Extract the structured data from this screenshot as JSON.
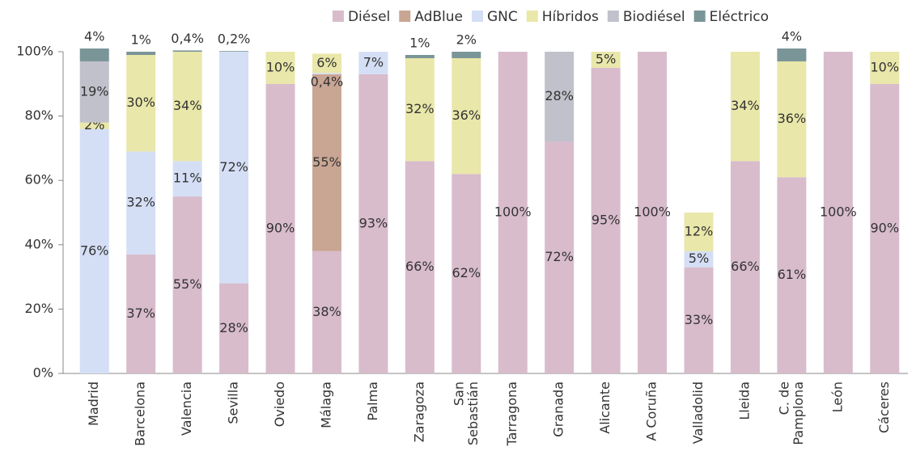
{
  "chart_data": {
    "type": "stacked-bar",
    "categories": [
      "Madrid",
      "Barcelona",
      "Valencia",
      "Sevilla",
      "Oviedo",
      "Málaga",
      "Palma",
      "Zaragoza",
      "San\nSebastián",
      "Tarragona",
      "Granada",
      "Alicante",
      "A Coruña",
      "Valladolid",
      "Lleida",
      "C. de\nPamplona",
      "León",
      "Cáceres"
    ],
    "series": [
      {
        "name": "Diésel",
        "color": "#d8bccc",
        "values": [
          null,
          37,
          55,
          28,
          90,
          38,
          93,
          66,
          62,
          100,
          72,
          95,
          100,
          33,
          66,
          61,
          100,
          90
        ],
        "value_labels": [
          null,
          "37%",
          "55%",
          "28%",
          "90%",
          "38%",
          "93%",
          "66%",
          "62%",
          "100%",
          "72%",
          "95%",
          "100%",
          "33%",
          "66%",
          "61%",
          "100%",
          "90%"
        ]
      },
      {
        "name": "AdBlue",
        "color": "#c9a593",
        "values": [
          null,
          null,
          null,
          null,
          null,
          55,
          null,
          null,
          null,
          null,
          null,
          null,
          null,
          null,
          null,
          null,
          null,
          null
        ],
        "value_labels": [
          null,
          null,
          null,
          null,
          null,
          "55%",
          null,
          null,
          null,
          null,
          null,
          null,
          null,
          null,
          null,
          null,
          null,
          null
        ]
      },
      {
        "name": "GNC",
        "color": "#d4dff5",
        "values": [
          76,
          32,
          11,
          72,
          null,
          0.4,
          7,
          null,
          null,
          null,
          null,
          null,
          null,
          5,
          null,
          null,
          null,
          null
        ],
        "value_labels": [
          "76%",
          "32%",
          "11%",
          "72%",
          null,
          "0,4%",
          "7%",
          null,
          null,
          null,
          null,
          null,
          null,
          "5%",
          null,
          null,
          null,
          null
        ]
      },
      {
        "name": "Híbridos",
        "color": "#e9e7a9",
        "values": [
          2,
          30,
          34,
          null,
          10,
          6,
          null,
          32,
          36,
          null,
          null,
          5,
          null,
          12,
          34,
          36,
          null,
          10
        ],
        "value_labels": [
          "2%",
          "30%",
          "34%",
          null,
          "10%",
          "6%",
          null,
          "32%",
          "36%",
          null,
          null,
          "5%",
          null,
          "12%",
          "34%",
          "36%",
          null,
          "10%"
        ]
      },
      {
        "name": "Biodiésel",
        "color": "#c1c1cc",
        "values": [
          19,
          null,
          null,
          null,
          null,
          null,
          null,
          null,
          null,
          null,
          28,
          null,
          null,
          null,
          null,
          null,
          null,
          null
        ],
        "value_labels": [
          "19%",
          null,
          null,
          null,
          null,
          null,
          null,
          null,
          null,
          null,
          "28%",
          null,
          null,
          null,
          null,
          null,
          null,
          null
        ]
      },
      {
        "name": "Eléctrico",
        "color": "#7a9597",
        "values": [
          4,
          1,
          0.4,
          0.2,
          null,
          null,
          null,
          1,
          2,
          null,
          null,
          null,
          null,
          null,
          null,
          4,
          null,
          null
        ],
        "value_labels": [
          "4%",
          "1%",
          "0,4%",
          "0,2%",
          null,
          null,
          null,
          "1%",
          "2%",
          null,
          null,
          null,
          null,
          null,
          null,
          "4%",
          null,
          null
        ]
      }
    ],
    "ylim": [
      0,
      100
    ],
    "yticks": [
      {
        "value": 0,
        "label": "0%"
      },
      {
        "value": 20,
        "label": "20%"
      },
      {
        "value": 40,
        "label": "40%"
      },
      {
        "value": 60,
        "label": "60%"
      },
      {
        "value": 80,
        "label": "80%"
      },
      {
        "value": 100,
        "label": "100%"
      }
    ],
    "grid": false,
    "legend": "top"
  }
}
